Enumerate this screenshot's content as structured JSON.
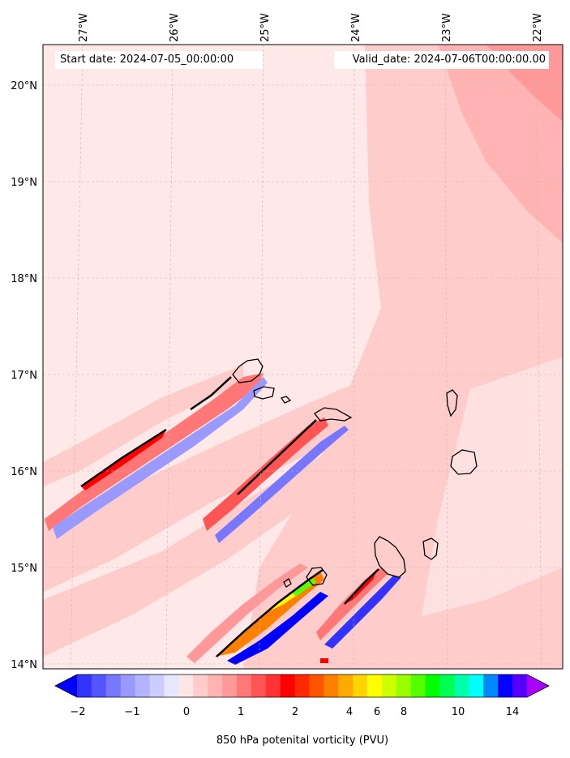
{
  "map": {
    "start_date_text": "Start date: 2024-07-05_00:00:00",
    "valid_date_text": "Valid_date: 2024-07-06T00:00:00.00",
    "lon_labels": [
      "27°W",
      "26°W",
      "25°W",
      "24°W",
      "23°W",
      "22°W"
    ],
    "lat_labels": [
      "20°N",
      "19°N",
      "18°N",
      "17°N",
      "16°N",
      "15°N",
      "14°N"
    ],
    "extent": {
      "lon_min": -27.4,
      "lon_max": -21.75,
      "lat_min": 13.95,
      "lat_max": 20.4
    },
    "variable": "850 hPa potenital vorticity",
    "units": "PVU"
  },
  "colorbar": {
    "label": "850 hPa potenital vorticity (PVU)",
    "tick_labels": [
      "−2",
      "−1",
      "0",
      "1",
      "2",
      "4",
      "6",
      "8",
      "10",
      "14"
    ],
    "colors": [
      "#0000ff",
      "#3333ff",
      "#5555ff",
      "#7777ff",
      "#9999ff",
      "#b3b3ff",
      "#ccccff",
      "#e6e6ff",
      "#ffe6e6",
      "#ffcccc",
      "#ffb3b3",
      "#ff9999",
      "#ff7777",
      "#ff5555",
      "#ff3333",
      "#ff0000",
      "#ff2a00",
      "#ff5500",
      "#ff8000",
      "#ffaa00",
      "#ffd400",
      "#ffff00",
      "#ccff00",
      "#99ff00",
      "#55ff00",
      "#00ff00",
      "#00ff55",
      "#00ffaa",
      "#00ffff",
      "#0088ff",
      "#0000ff",
      "#5500ff",
      "#aa00ff"
    ]
  }
}
